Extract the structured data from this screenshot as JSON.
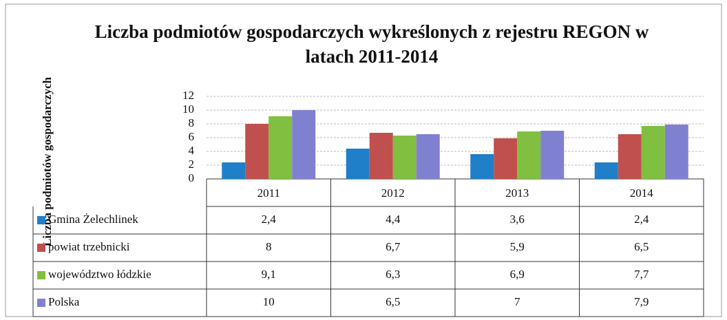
{
  "chart_data": {
    "type": "bar",
    "title": "Liczba podmiotów gospodarczych wykreślonych z rejestru REGON w latach 2011-2014",
    "y_label": "Liczba podmiotów gospodarczych",
    "categories": [
      "2011",
      "2012",
      "2013",
      "2014"
    ],
    "series": [
      {
        "name": "Gmina Żelechlinek",
        "color": "#1f7fc9",
        "values": [
          2.4,
          4.4,
          3.6,
          2.4
        ],
        "value_labels": [
          "2,4",
          "4,4",
          "3,6",
          "2,4"
        ]
      },
      {
        "name": "powiat trzebnicki",
        "color": "#c0504d",
        "values": [
          8,
          6.7,
          5.9,
          6.5
        ],
        "value_labels": [
          "8",
          "6,7",
          "5,9",
          "6,5"
        ]
      },
      {
        "name": "województwo łódzkie",
        "color": "#80bf40",
        "values": [
          9.1,
          6.3,
          6.9,
          7.7
        ],
        "value_labels": [
          "9,1",
          "6,3",
          "6,9",
          "7,7"
        ]
      },
      {
        "name": "Polska",
        "color": "#8080d0",
        "values": [
          10,
          6.5,
          7,
          7.9
        ],
        "value_labels": [
          "10",
          "6,5",
          "7",
          "7,9"
        ]
      }
    ],
    "ylim": [
      0,
      12
    ],
    "yticks": [
      0,
      2,
      4,
      6,
      8,
      10,
      12
    ],
    "grid": true
  }
}
